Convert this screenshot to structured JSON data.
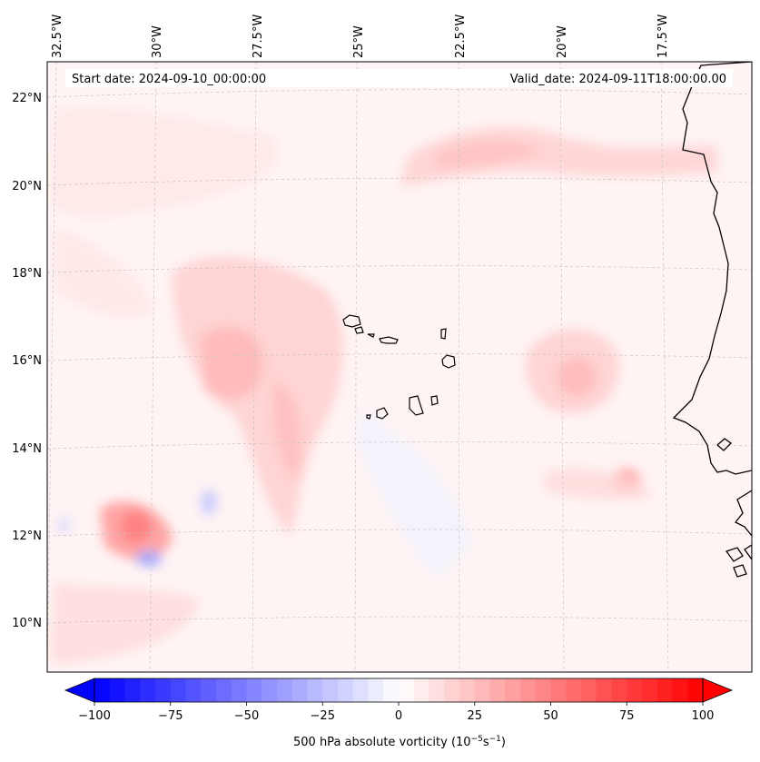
{
  "map": {
    "start_date": "Start date: 2024-09-10_00:00:00",
    "valid_date": "Valid_date: 2024-09-11T18:00:00.00",
    "lon_ticks": [
      "32.5°W",
      "30°W",
      "27.5°W",
      "25°W",
      "22.5°W",
      "20°W",
      "17.5°W"
    ],
    "lat_ticks": [
      "22°N",
      "20°N",
      "18°N",
      "16°N",
      "14°N",
      "12°N",
      "10°N"
    ]
  },
  "colorbar": {
    "label": "500 hPa absolute vorticity (10",
    "label_exp1": "−5",
    "label_mid": "s",
    "label_exp2": "−1",
    "label_end": ")",
    "min": -100,
    "max": 100,
    "step": 5,
    "ticks": [
      "−100",
      "−75",
      "−50",
      "−25",
      "0",
      "25",
      "50",
      "75",
      "100"
    ],
    "neg_color": "#0000ff",
    "pos_color": "#ff0000"
  },
  "colors": {
    "coastline": "#000000",
    "grid": "#bbbbbb",
    "background": "#fff6f6"
  }
}
